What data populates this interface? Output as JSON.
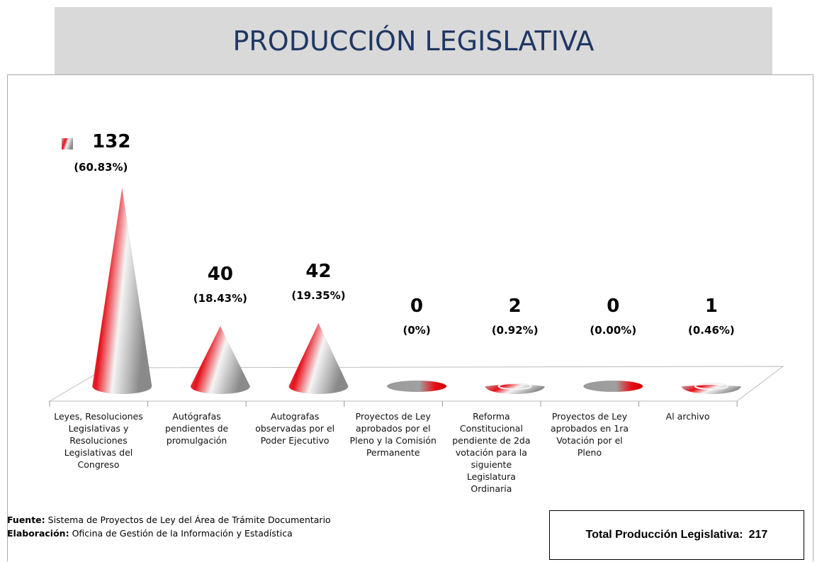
{
  "chart_data": {
    "type": "cone",
    "title": "PRODUCCIÓN LEGISLATIVA",
    "categories": [
      "Leyes, Resoluciones Legislativas y Resoluciones Legislativas del Congreso",
      "Autógrafas pendientes de promulgación",
      "Autografas observadas por el Poder Ejecutivo",
      "Proyectos de Ley aprobados  por el Pleno y la Comisión Permanente",
      "Reforma Constitucional pendiente de 2da votación para la siguiente Legislatura Ordinaria",
      "Proyectos de Ley aprobados en 1ra Votación por el Pleno",
      "Al archivo"
    ],
    "values": [
      132,
      40,
      42,
      0,
      2,
      0,
      1
    ],
    "shares": [
      60.83,
      18.43,
      19.35,
      0,
      0.92,
      0.0,
      0.46
    ],
    "share_labels": [
      "(60.83%)",
      "(18.43%)",
      "(19.35%)",
      "(0%)",
      "(0.92%)",
      "(0.00%)",
      "(0.46%)"
    ],
    "color": "#e8101a",
    "ylim": [
      0,
      140
    ],
    "source": {
      "label": "Fuente:",
      "text": "Sistema de Proyectos de Ley del Área de Trámite Documentario"
    },
    "credit": {
      "label": "Elaboración:",
      "text": "Oficina de Gestión de la Información y Estadística"
    },
    "total_label": "Total Producción Legislativa:",
    "total": 217
  }
}
